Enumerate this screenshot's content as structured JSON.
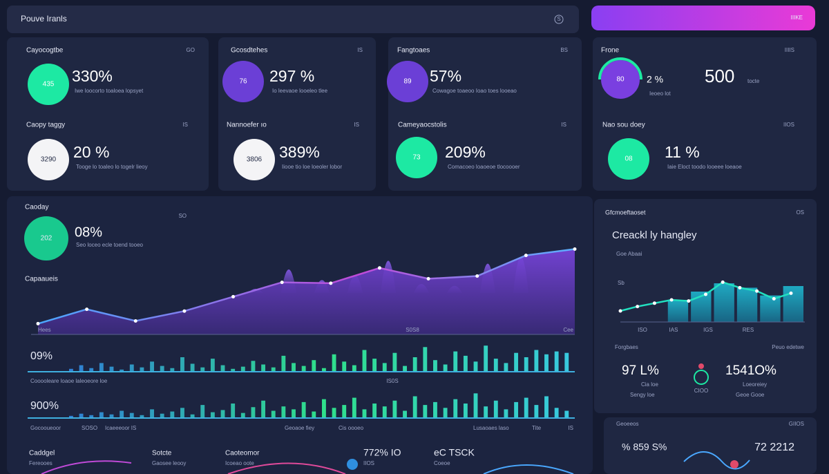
{
  "header": {
    "title": "Pouve Iranls",
    "icon": "S",
    "button": "IIIKE"
  },
  "stats": [
    {
      "label": "Cayocogtbe",
      "corner": "GO",
      "badge": "435",
      "value": "330%",
      "desc": "Iwe loocorto toaloea lopsyet",
      "color": "#1de9a3"
    },
    {
      "label": "Gcosdtehes",
      "corner": "IS",
      "badge": "76",
      "value": "297 %",
      "desc": "Io leevaoe looeleo tlee",
      "color": "#6b3fd6"
    },
    {
      "label": "Fangtoaes",
      "corner": "BS",
      "badge": "89",
      "value": "57%",
      "desc": "Cowagoe toaeoo Ioao toes looeao",
      "color": "#6b3fd6"
    },
    {
      "label": "Caopy taggy",
      "corner": "IS",
      "badge": "3290",
      "value": "20 %",
      "desc": "Tooge lo toaleo lo togelr lieoy",
      "color": "#f4f4f6"
    },
    {
      "label": "Nannoefer ıo",
      "corner": "IS",
      "badge": "3806",
      "value": "389%",
      "desc": "Iiooe tio loe loeoler lobor",
      "color": "#f4f4f6"
    },
    {
      "label": "Cameyaocstolis",
      "corner": "IS",
      "badge": "73",
      "value": "209%",
      "desc": "Comacoeo loaoeoe tlocoooer",
      "color": "#1de9a3"
    },
    {
      "label": "Frone",
      "corner": "IIIIS",
      "badge": "80",
      "value": "2 %",
      "desc": "Ieoeo lot",
      "color": "#7a3fe0",
      "big": "500",
      "big_desc": "tocte"
    },
    {
      "label": "Nao sou doey",
      "corner": "IIOS",
      "badge": "08",
      "value": "11 %",
      "desc": "Iaie Eloct toodo looeee loeaoe",
      "color": "#1de9a3"
    }
  ],
  "main": {
    "label": "Caoday",
    "corner": "SO",
    "badge": "202",
    "value": "08%",
    "desc": "Seo loceo ecle toend tooeo",
    "sub": "Capaaueis",
    "ylim": [
      0,
      100
    ],
    "values": [
      12,
      28,
      15,
      26,
      42,
      58,
      57,
      74,
      62,
      65,
      88,
      95
    ],
    "peaks": [
      30,
      70,
      48,
      58,
      88,
      40,
      36,
      82,
      96
    ],
    "x_labels": [
      "Hees",
      "S0S8",
      "Cee"
    ]
  },
  "bars1": {
    "value": "09%",
    "desc": "Cooooleare loaoe laleoeore loe",
    "mid": "IS0S",
    "ylim": [
      0,
      40
    ],
    "values": [
      4,
      9,
      5,
      12,
      7,
      3,
      10,
      6,
      14,
      8,
      5,
      20,
      11,
      6,
      18,
      9,
      4,
      7,
      15,
      10,
      6,
      22,
      12,
      8,
      16,
      5,
      24,
      14,
      9,
      30,
      18,
      12,
      26,
      8,
      20,
      34,
      16,
      10,
      28,
      22,
      14,
      36,
      18,
      12,
      26,
      20,
      30,
      24,
      28,
      26
    ]
  },
  "bars2": {
    "value": "900%",
    "labels": [
      "Gocooueoor",
      "SOSO",
      "Icaeeeoor IS",
      "Geoaoe fiey",
      "Cis oooeo",
      "Lusaoaes laso",
      "Tite",
      "IS"
    ],
    "ylim": [
      0,
      40
    ],
    "values": [
      3,
      6,
      4,
      8,
      5,
      10,
      7,
      4,
      12,
      6,
      9,
      14,
      5,
      18,
      8,
      11,
      20,
      7,
      15,
      24,
      10,
      16,
      12,
      22,
      9,
      26,
      14,
      18,
      28,
      12,
      20,
      16,
      24,
      10,
      30,
      18,
      22,
      14,
      26,
      20,
      34,
      16,
      24,
      12,
      22,
      28,
      18,
      30,
      14,
      10
    ]
  },
  "bottom": [
    {
      "title": "Caddgel",
      "sub": "Fereooes"
    },
    {
      "title": "Sotcte",
      "sub": "Gaosee leooy"
    },
    {
      "title": "Caoteomor",
      "sub": "Icoeao oote"
    },
    {
      "title": "772% IO",
      "sub": "IIOS"
    },
    {
      "title": "eC  TSCK",
      "sub": "Coeoe"
    }
  ],
  "side": {
    "label": "Gfcmoeftaoset",
    "corner": "OS",
    "title": "Creackl ly hangley",
    "axis": [
      "Goe Abaai",
      "Sb"
    ],
    "ylim": [
      0,
      100
    ],
    "line": [
      20,
      28,
      34,
      40,
      38,
      50,
      72,
      62,
      56,
      42,
      52
    ],
    "bars": [
      0,
      0,
      40,
      55,
      70,
      62,
      48,
      65
    ],
    "x_labels": [
      "ISO",
      "IAS",
      "IGS",
      "RES"
    ],
    "stats": [
      {
        "label": "Forgbaes",
        "value": "97 L%",
        "desc": "Cia loe",
        "sub": "Sengy loe"
      },
      {
        "label": "Peuo edetwe",
        "value": "1541O%",
        "desc": "Loeoreiey",
        "sub": "Geoe  Gooe"
      }
    ],
    "badge": "CIOO"
  },
  "side2": {
    "label": "Geoeeos",
    "corner": "GIIOS",
    "left": "% 859 S%",
    "right": "72 2212"
  }
}
